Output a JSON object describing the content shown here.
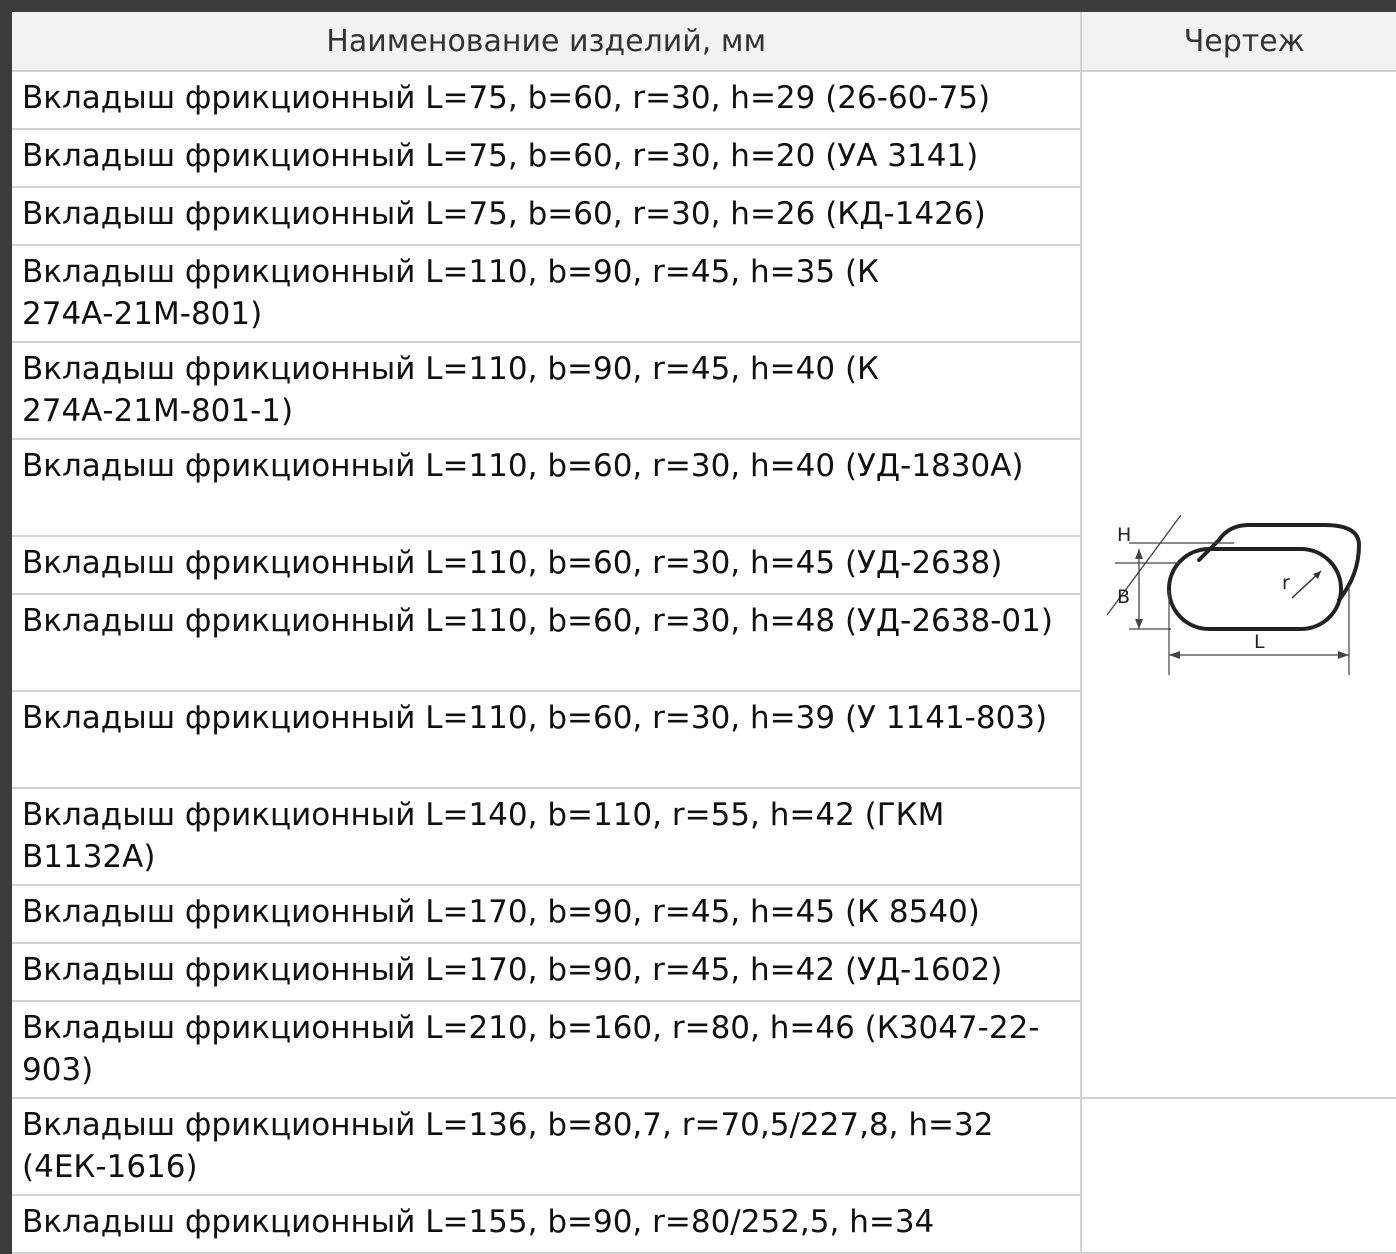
{
  "table": {
    "headers": {
      "name": "Наименование изделий, мм",
      "drawing": "Чертеж"
    },
    "rows": [
      "Вкладыш фрикционный L=75, b=60, r=30, h=29 (26-60-75)",
      "Вкладыш фрикционный L=75, b=60, r=30, h=20 (УА 3141)",
      "Вкладыш фрикционный L=75, b=60, r=30, h=26 (КД-1426)",
      "Вкладыш фрикционный L=110, b=90, r=45, h=35 (К 274А-21М-801)",
      "Вкладыш фрикционный L=110, b=90, r=45, h=40 (К 274А-21М-801-1)",
      "Вкладыш фрикционный L=110, b=60, r=30, h=40 (УД-1830А)",
      "Вкладыш фрикционный L=110, b=60, r=30, h=45 (УД-2638)",
      "Вкладыш фрикционный L=110, b=60, r=30, h=48 (УД-2638-01)",
      "Вкладыш фрикционный L=110, b=60, r=30, h=39 (У 1141-803)",
      "Вкладыш фрикционный L=140, b=110, r=55, h=42 (ГКМ В1132А)",
      "Вкладыш фрикционный L=170, b=90, r=45, h=45 (К 8540)",
      "Вкладыш фрикционный L=170, b=90, r=45, h=42 (УД-1602)",
      "Вкладыш фрикционный L=210, b=160, r=80, h=46 (К3047-22-903)",
      "Вкладыш фрикционный L=136, b=80,7, r=70,5/227,8, h=32 (4ЕК-1616)",
      "Вкладыш фрикционный L=155, b=90, r=80/252,5, h=34"
    ]
  },
  "drawing": {
    "labels": {
      "h": "H",
      "b": "B",
      "r": "r",
      "l": "L"
    }
  }
}
